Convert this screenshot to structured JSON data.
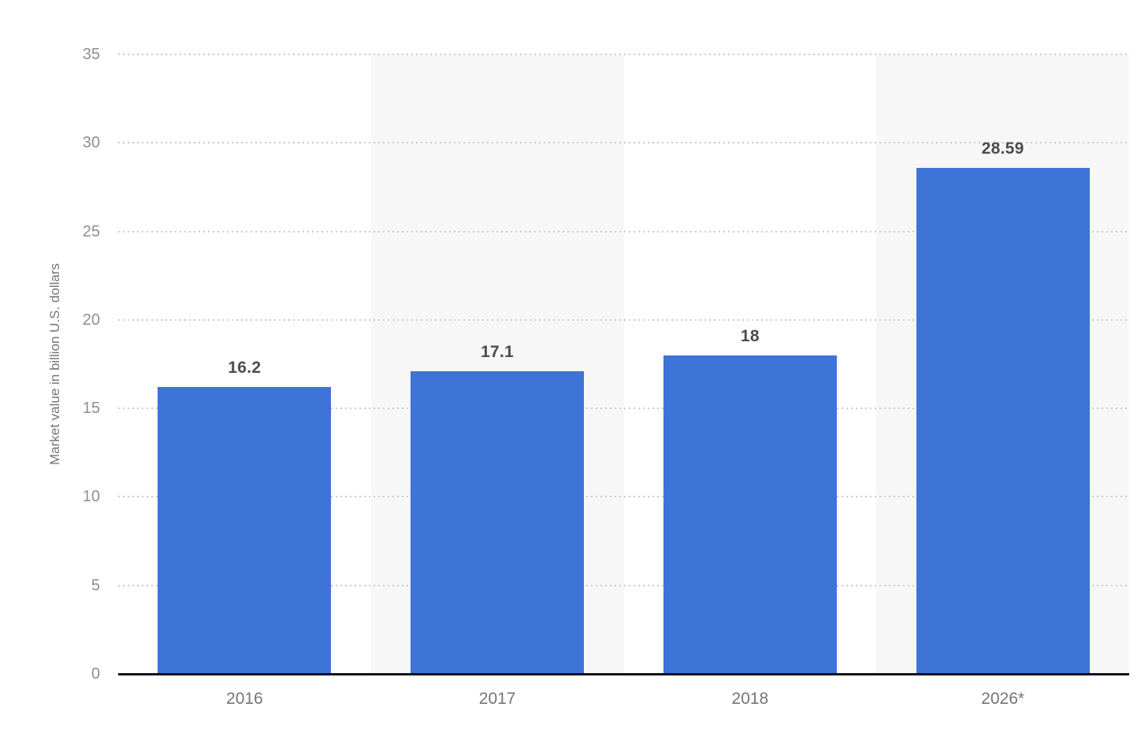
{
  "chart_data": {
    "type": "bar",
    "title": "",
    "categories": [
      "2016",
      "2017",
      "2018",
      "2026*"
    ],
    "values": [
      16.2,
      17.1,
      18,
      28.59
    ],
    "value_labels": [
      "16.2",
      "17.1",
      "18",
      "28.59"
    ],
    "xlabel": "",
    "ylabel": "Market value in billion U.S. dollars",
    "ylim": [
      0,
      35
    ],
    "yticks": [
      0,
      5,
      10,
      15,
      20,
      25,
      30,
      35
    ],
    "grid": "horizontal-dotted",
    "legend": "none",
    "banded_columns": [
      1,
      3
    ],
    "colors": {
      "bar": "#3e73d8",
      "column_band": "#f7f7f7",
      "gridline": "#c9c9c9",
      "axis_line": "#111318",
      "ytick_label": "#8f8f8f",
      "xtick_label": "#757575",
      "value_label": "#4d4d4d",
      "background": "#ffffff"
    }
  }
}
